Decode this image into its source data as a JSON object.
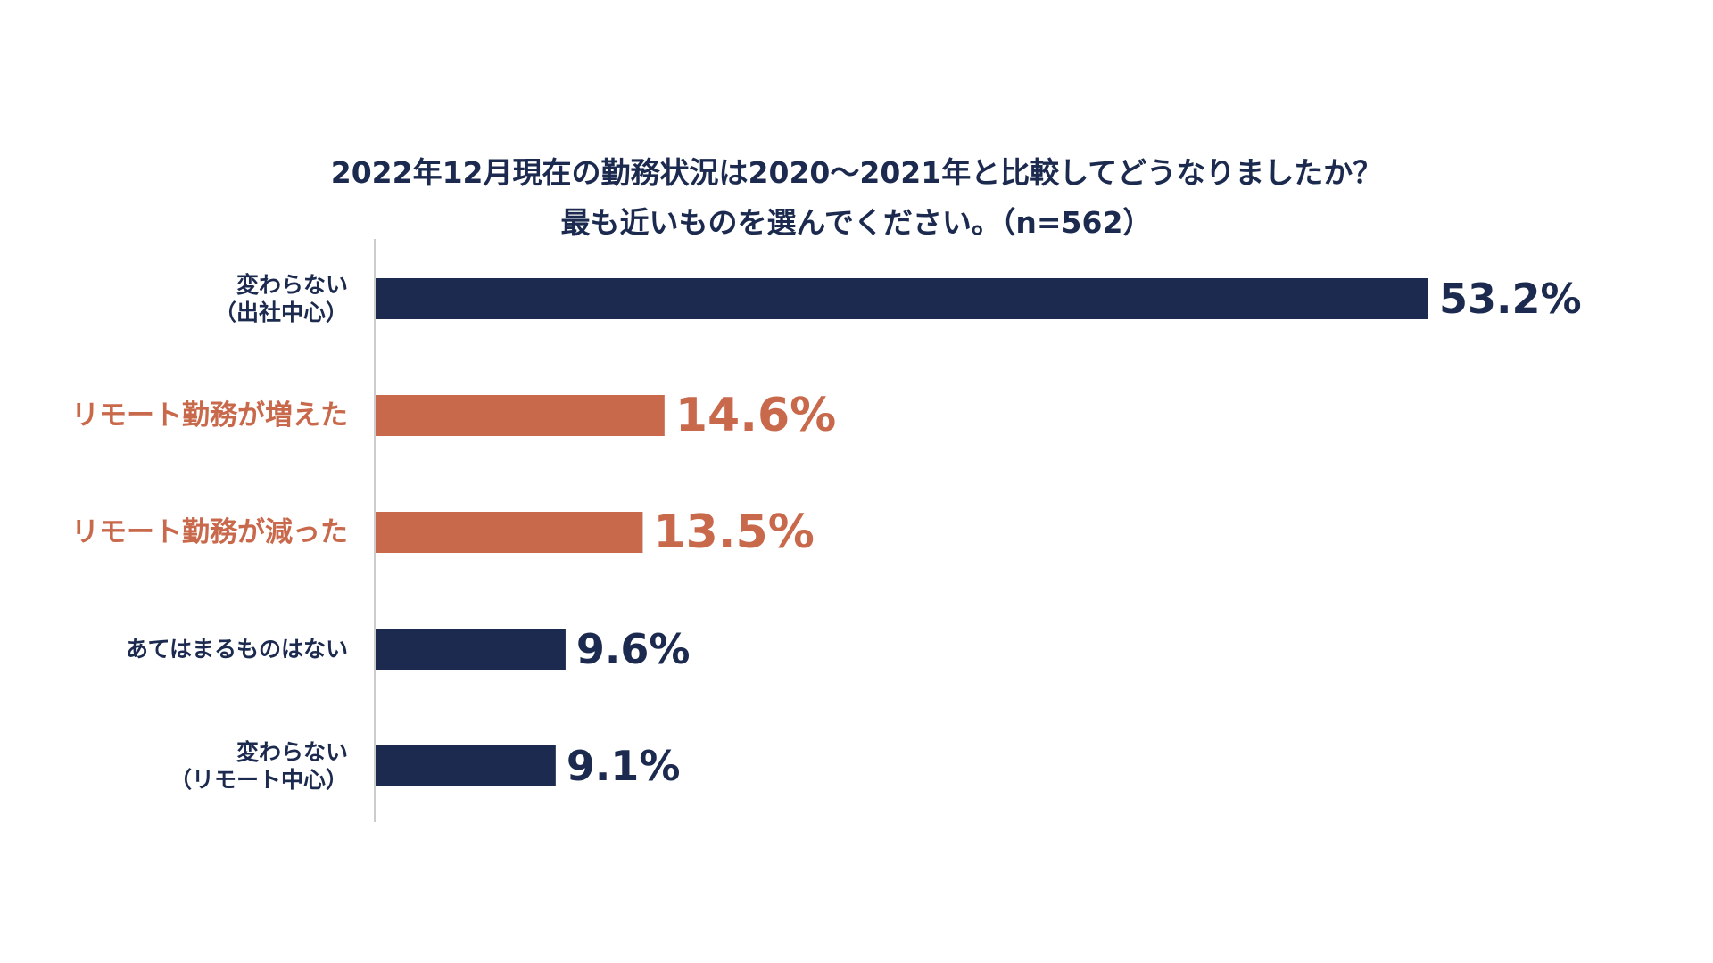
{
  "chart_data": {
    "type": "bar",
    "orientation": "horizontal",
    "title": "2022年12月現在の勤務状況は2020〜2021年と比較してどうなりましたか？",
    "subtitle": "最も近いものを選んでください。（n=562）",
    "categories": [
      [
        "変わらない",
        "（出社中心）"
      ],
      [
        "リモート勤務が増えた"
      ],
      [
        "リモート勤務が減った"
      ],
      [
        "あてはまるものはない"
      ],
      [
        "変わらない",
        "（リモート中心）"
      ]
    ],
    "values": [
      53.2,
      14.6,
      13.5,
      9.6,
      9.1
    ],
    "value_labels": [
      "53.2%",
      "14.6%",
      "13.5%",
      "9.6%",
      "9.1%"
    ],
    "highlighted": [
      false,
      true,
      true,
      false,
      false
    ],
    "xlim": [
      0,
      60
    ],
    "grid": false,
    "legend": "none",
    "colors": {
      "default": "#1b2a4e",
      "highlight": "#c9694c",
      "axis": "#cccccc"
    }
  }
}
